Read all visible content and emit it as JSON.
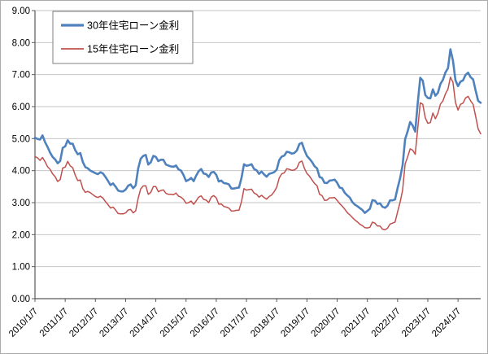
{
  "chart": {
    "legend": {
      "series30_label": "30年住宅ローン金利",
      "series15_label": "15年住宅ローン金利"
    },
    "colors": {
      "series30": "#4F81BD",
      "series15": "#C0504D",
      "gridline": "#c6c6c6",
      "axis": "#595959",
      "tick_text": "#000000",
      "legend_border": "#7f7f7f",
      "background": "#ffffff"
    }
  },
  "chart_data": {
    "type": "line",
    "title": "",
    "xlabel": "",
    "ylabel": "",
    "ylim": [
      0,
      9
    ],
    "grid": "horizontal",
    "legend_position": "top-left-inside",
    "y_tick_labels": [
      "0.00",
      "1.00",
      "2.00",
      "3.00",
      "4.00",
      "5.00",
      "6.00",
      "7.00",
      "8.00",
      "9.00"
    ],
    "x_tick_labels": [
      "2010/1/7",
      "2011/1/7",
      "2012/1/7",
      "2013/1/7",
      "2014/1/7",
      "2015/1/7",
      "2016/1/7",
      "2017/1/7",
      "2018/1/7",
      "2019/1/7",
      "2020/1/7",
      "2021/1/7",
      "2022/1/7",
      "2023/1/7",
      "2024/1/7"
    ],
    "x_tick_positions": [
      0,
      12,
      24,
      36,
      48,
      60,
      72,
      84,
      96,
      108,
      120,
      132,
      144,
      156,
      168
    ],
    "x_unit": "monthly from 2010/1 to 2024/10",
    "series": [
      {
        "name": "30年住宅ローン金利",
        "color": "#4F81BD",
        "width": 2.6,
        "values": [
          5.03,
          4.99,
          4.97,
          5.1,
          4.89,
          4.74,
          4.56,
          4.43,
          4.35,
          4.23,
          4.3,
          4.71,
          4.76,
          4.95,
          4.84,
          4.84,
          4.64,
          4.51,
          4.55,
          4.27,
          4.11,
          4.07,
          4.0,
          3.96,
          3.92,
          3.89,
          3.95,
          3.91,
          3.8,
          3.68,
          3.55,
          3.6,
          3.5,
          3.38,
          3.35,
          3.35,
          3.41,
          3.53,
          3.57,
          3.45,
          3.54,
          4.07,
          4.37,
          4.46,
          4.49,
          4.19,
          4.26,
          4.46,
          4.43,
          4.3,
          4.34,
          4.34,
          4.19,
          4.16,
          4.13,
          4.12,
          4.16,
          4.04,
          4.0,
          3.86,
          3.67,
          3.71,
          3.77,
          3.67,
          3.84,
          3.98,
          4.05,
          3.91,
          3.89,
          3.8,
          3.94,
          3.96,
          3.87,
          3.66,
          3.69,
          3.61,
          3.6,
          3.57,
          3.44,
          3.44,
          3.46,
          3.47,
          3.77,
          4.2,
          4.15,
          4.17,
          4.2,
          4.05,
          4.01,
          3.9,
          3.97,
          3.88,
          3.81,
          3.9,
          3.92,
          3.95,
          4.03,
          4.33,
          4.44,
          4.47,
          4.59,
          4.57,
          4.53,
          4.55,
          4.63,
          4.83,
          4.87,
          4.64,
          4.46,
          4.37,
          4.27,
          4.14,
          4.07,
          3.8,
          3.77,
          3.62,
          3.61,
          3.69,
          3.7,
          3.72,
          3.62,
          3.47,
          3.45,
          3.31,
          3.23,
          3.16,
          3.02,
          2.94,
          2.89,
          2.83,
          2.77,
          2.68,
          2.74,
          2.81,
          3.08,
          3.06,
          2.96,
          2.98,
          2.87,
          2.84,
          2.9,
          3.07,
          3.07,
          3.1,
          3.45,
          3.76,
          4.17,
          4.98,
          5.23,
          5.52,
          5.41,
          5.22,
          6.11,
          6.9,
          6.81,
          6.36,
          6.27,
          6.26,
          6.54,
          6.34,
          6.43,
          6.71,
          6.84,
          7.07,
          7.2,
          7.79,
          7.44,
          6.82,
          6.64,
          6.78,
          6.82,
          6.99,
          7.06,
          6.92,
          6.85,
          6.5,
          6.18,
          6.12
        ]
      },
      {
        "name": "15年住宅ローン金利",
        "color": "#C0504D",
        "width": 1.5,
        "values": [
          4.44,
          4.4,
          4.32,
          4.41,
          4.28,
          4.12,
          4.04,
          3.9,
          3.81,
          3.66,
          3.72,
          4.08,
          4.11,
          4.29,
          4.15,
          4.09,
          3.86,
          3.69,
          3.71,
          3.44,
          3.32,
          3.35,
          3.31,
          3.25,
          3.19,
          3.16,
          3.2,
          3.14,
          3.03,
          2.94,
          2.83,
          2.86,
          2.77,
          2.66,
          2.65,
          2.65,
          2.68,
          2.77,
          2.79,
          2.68,
          2.74,
          3.14,
          3.43,
          3.52,
          3.53,
          3.26,
          3.32,
          3.5,
          3.5,
          3.34,
          3.38,
          3.4,
          3.29,
          3.26,
          3.26,
          3.25,
          3.3,
          3.2,
          3.17,
          3.1,
          2.98,
          3.0,
          3.05,
          2.95,
          3.05,
          3.17,
          3.21,
          3.1,
          3.08,
          3.0,
          3.17,
          3.22,
          3.15,
          2.95,
          2.96,
          2.88,
          2.86,
          2.83,
          2.74,
          2.74,
          2.76,
          2.76,
          3.03,
          3.44,
          3.39,
          3.41,
          3.42,
          3.3,
          3.26,
          3.17,
          3.23,
          3.16,
          3.11,
          3.19,
          3.24,
          3.34,
          3.48,
          3.77,
          3.9,
          3.93,
          4.06,
          4.04,
          4.01,
          4.02,
          4.08,
          4.26,
          4.3,
          4.07,
          3.91,
          3.83,
          3.71,
          3.6,
          3.53,
          3.26,
          3.22,
          3.07,
          3.08,
          3.15,
          3.15,
          3.16,
          3.07,
          2.97,
          2.89,
          2.8,
          2.69,
          2.62,
          2.54,
          2.46,
          2.4,
          2.33,
          2.28,
          2.22,
          2.21,
          2.23,
          2.39,
          2.36,
          2.27,
          2.27,
          2.17,
          2.15,
          2.2,
          2.33,
          2.36,
          2.39,
          2.71,
          3.01,
          3.39,
          4.21,
          4.43,
          4.68,
          4.64,
          4.51,
          5.31,
          6.12,
          6.07,
          5.65,
          5.48,
          5.5,
          5.8,
          5.62,
          5.79,
          6.08,
          6.18,
          6.4,
          6.55,
          6.92,
          6.76,
          6.13,
          5.89,
          6.07,
          6.11,
          6.27,
          6.32,
          6.18,
          6.07,
          5.7,
          5.3,
          5.15
        ]
      }
    ]
  }
}
